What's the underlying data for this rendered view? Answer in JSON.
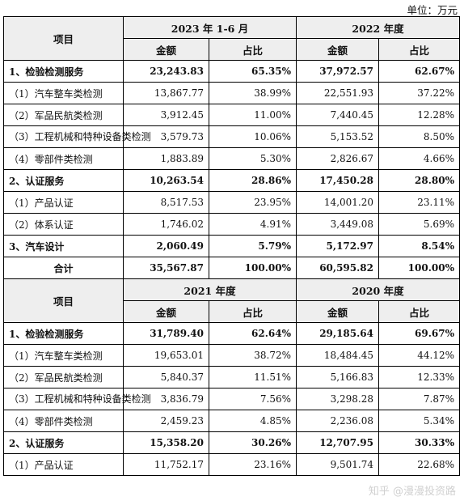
{
  "unit_label": "单位：万元",
  "watermark": "知乎 @漫漫投资路",
  "blocks": [
    {
      "header": {
        "item": "项目",
        "periods": [
          "2023 年 1-6 月",
          "2022 年度"
        ],
        "amount": "金额",
        "ratio": "占比"
      },
      "rows": [
        {
          "label": "1、检验检测服务",
          "bold": true,
          "values": [
            "23,243.83",
            "65.35%",
            "37,972.57",
            "62.67%"
          ]
        },
        {
          "label": "（1）汽车整车类检测",
          "values": [
            "13,867.77",
            "38.99%",
            "22,551.93",
            "37.22%"
          ]
        },
        {
          "label": "（2）军品民航类检测",
          "values": [
            "3,912.45",
            "11.00%",
            "7,440.45",
            "12.28%"
          ]
        },
        {
          "label": "（3）工程机械和特种设备类检测",
          "tall": true,
          "values": [
            "3,579.73",
            "10.06%",
            "5,153.52",
            "8.50%"
          ]
        },
        {
          "label": "（4）零部件类检测",
          "values": [
            "1,883.89",
            "5.30%",
            "2,826.67",
            "4.66%"
          ]
        },
        {
          "label": "2、认证服务",
          "bold": true,
          "values": [
            "10,263.54",
            "28.86%",
            "17,450.28",
            "28.80%"
          ]
        },
        {
          "label": "（1）产品认证",
          "values": [
            "8,517.53",
            "23.95%",
            "14,001.20",
            "23.11%"
          ]
        },
        {
          "label": "（2）体系认证",
          "values": [
            "1,746.02",
            "4.91%",
            "3,449.08",
            "5.69%"
          ]
        },
        {
          "label": "3、汽车设计",
          "bold": true,
          "values": [
            "2,060.49",
            "5.79%",
            "5,172.97",
            "8.54%"
          ]
        },
        {
          "label": "合计",
          "bold": true,
          "center": true,
          "values": [
            "35,567.87",
            "100.00%",
            "60,595.82",
            "100.00%"
          ]
        }
      ]
    },
    {
      "header": {
        "item": "项目",
        "periods": [
          "2021 年度",
          "2020 年度"
        ],
        "amount": "金额",
        "ratio": "占比"
      },
      "rows": [
        {
          "label": "1、检验检测服务",
          "bold": true,
          "values": [
            "31,789.40",
            "62.64%",
            "29,185.64",
            "69.67%"
          ]
        },
        {
          "label": "（1）汽车整车类检测",
          "values": [
            "19,653.01",
            "38.72%",
            "18,484.45",
            "44.12%"
          ]
        },
        {
          "label": "（2）军品民航类检测",
          "values": [
            "5,840.37",
            "11.51%",
            "5,166.83",
            "12.33%"
          ]
        },
        {
          "label": "（3）工程机械和特种设备类检测",
          "tall": true,
          "values": [
            "3,836.79",
            "7.56%",
            "3,298.28",
            "7.87%"
          ]
        },
        {
          "label": "（4）零部件类检测",
          "values": [
            "2,459.23",
            "4.85%",
            "2,236.08",
            "5.34%"
          ]
        },
        {
          "label": "2、认证服务",
          "bold": true,
          "values": [
            "15,358.20",
            "30.26%",
            "12,707.95",
            "30.33%"
          ]
        },
        {
          "label": "（1）产品认证",
          "values": [
            "11,752.17",
            "23.16%",
            "9,501.74",
            "22.68%"
          ]
        }
      ]
    }
  ]
}
